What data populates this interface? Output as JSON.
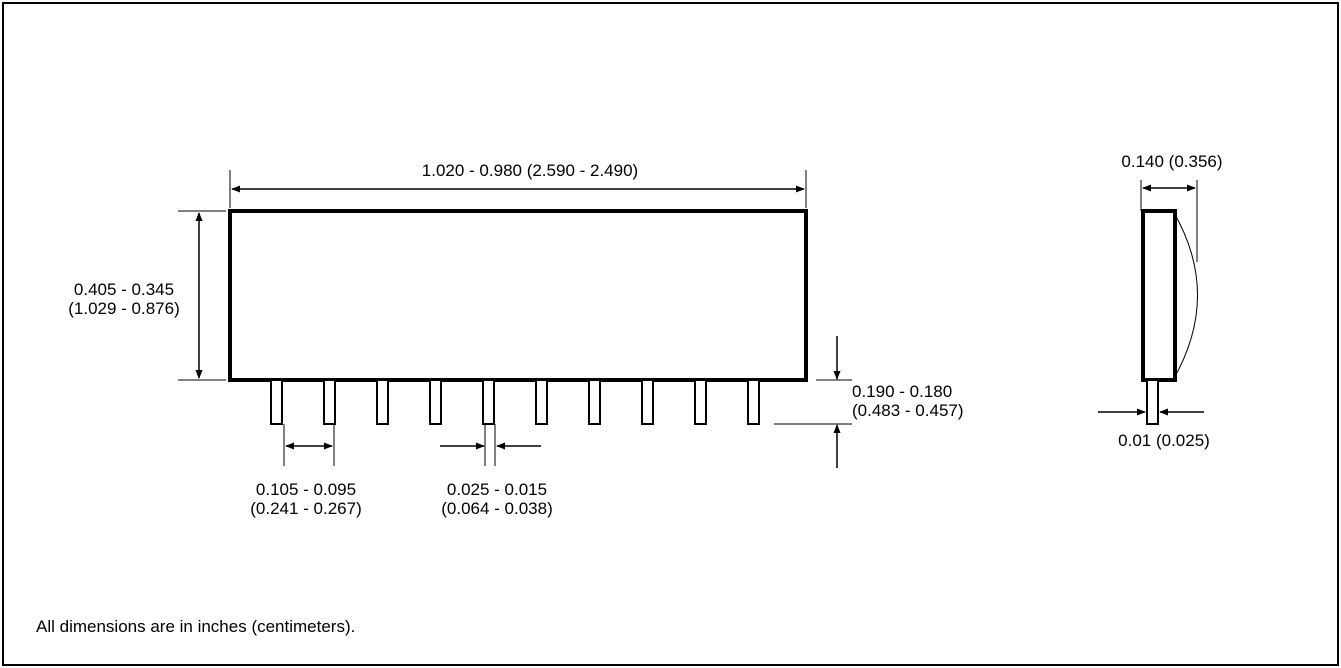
{
  "dimensions": {
    "length": "1.020 - 0.980 (2.590 - 2.490)",
    "height_in": "0.405 - 0.345",
    "height_cm": "(1.029 - 0.876)",
    "pin_pitch_in": "0.105 - 0.095",
    "pin_pitch_cm": "(0.241 - 0.267)",
    "pin_width_in": "0.025 - 0.015",
    "pin_width_cm": "(0.064 - 0.038)",
    "pin_length_in": "0.190 - 0.180",
    "pin_length_cm": "(0.483 - 0.457)",
    "thickness": "0.140 (0.356)",
    "pin_thickness": "0.01 (0.025)"
  },
  "pin_count": 10,
  "note": "All dimensions are in inches (centimeters)."
}
